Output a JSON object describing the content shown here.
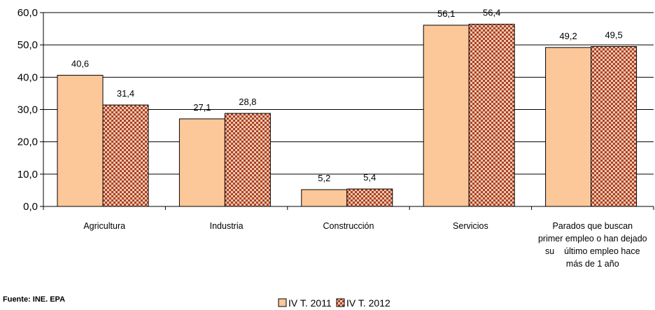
{
  "chart_data": {
    "type": "bar",
    "title": "",
    "xlabel": "",
    "ylabel": "",
    "ylim": [
      0,
      60
    ],
    "yticks": [
      "0,0",
      "10,0",
      "20,0",
      "30,0",
      "40,0",
      "50,0",
      "60,0"
    ],
    "grid": true,
    "legend_position": "bottom",
    "categories": [
      "Agricultura",
      "Industria",
      "Construcción",
      "Servicios",
      "Parados que buscan primer empleo o han dejado su último empleo hace más de 1 año"
    ],
    "category_lines": [
      [
        "Agricultura"
      ],
      [
        "Industria"
      ],
      [
        "Construcción"
      ],
      [
        "Servicios"
      ],
      [
        "Parados que buscan",
        "primer empleo o han dejado",
        "su    último empleo hace",
        "más de 1 año"
      ]
    ],
    "series": [
      {
        "name": "IV T. 2011",
        "values": [
          40.6,
          27.1,
          5.2,
          56.1,
          49.2
        ],
        "labels": [
          "40,6",
          "27,1",
          "5,2",
          "56,1",
          "49,2"
        ],
        "color": "#fcc799"
      },
      {
        "name": "IV T. 2012",
        "values": [
          31.4,
          28.8,
          5.4,
          56.4,
          49.5
        ],
        "labels": [
          "31,4",
          "28,8",
          "5,4",
          "56,4",
          "49,5"
        ],
        "color": "#b5543a"
      }
    ]
  },
  "source": "Fuente: INE. EPA"
}
